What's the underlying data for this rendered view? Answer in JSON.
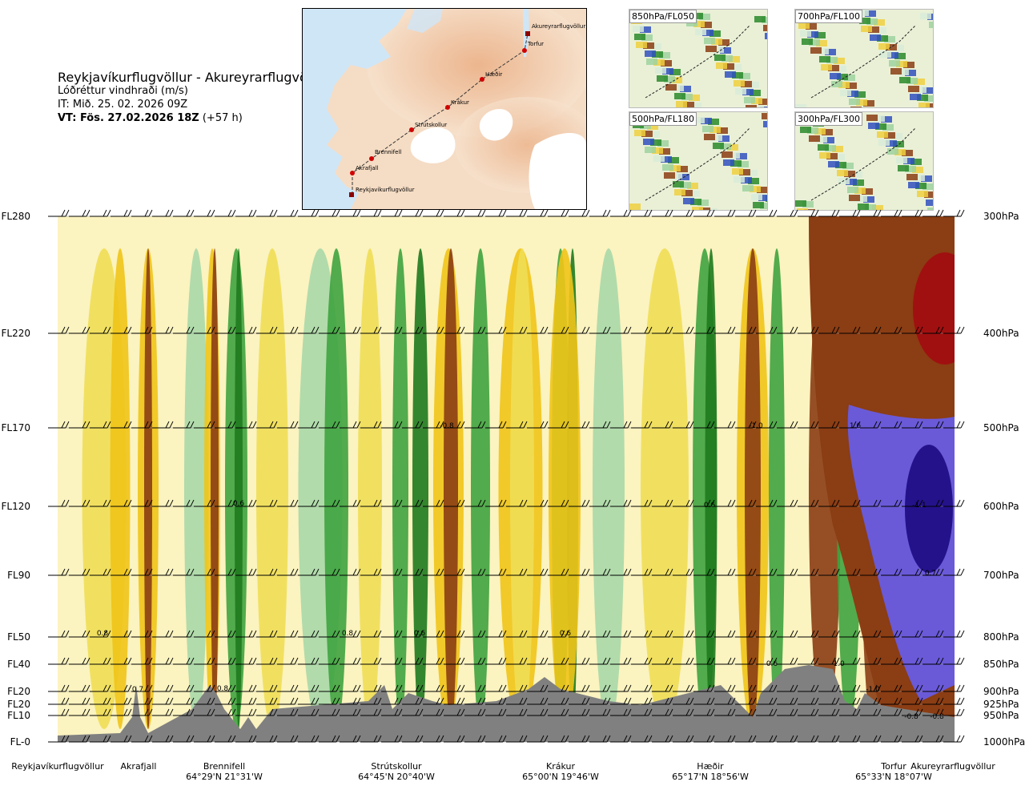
{
  "header": {
    "route_title": "Reykjavíkurflugvöllur - Akureyrarflugvöllur",
    "parameter": "Lóðréttur vindhraði (m/s)",
    "issue_time": "IT: Mið. 25. 02. 2026 09Z",
    "valid_prefix": "VT: Fös. 27.02.2026 18Z",
    "valid_lead": " (+57 h)"
  },
  "route_map": {
    "points": [
      "Reykjavíkurflugvöllur",
      "Akrafjall",
      "Brennifell",
      "Strútskollur",
      "Krákur",
      "Hæðir",
      "Torfur",
      "Akureyrarflugvöllur"
    ]
  },
  "level_maps": [
    {
      "label": "850hPa/FL050"
    },
    {
      "label": "700hPa/FL100"
    },
    {
      "label": "500hPa/FL180"
    },
    {
      "label": "300hPa/FL300"
    }
  ],
  "chart_data": {
    "type": "heatmap",
    "title": "Lóðréttur vindhraði (m/s)",
    "xlabel": "",
    "ylabel": "",
    "flight_levels": [
      "FL280",
      "FL220",
      "FL170",
      "FL120",
      "FL90",
      "FL50",
      "FL40",
      "FL20",
      "FL20",
      "FL10",
      "FL-0"
    ],
    "pressure_levels": [
      "300hPa",
      "400hPa",
      "500hPa",
      "600hPa",
      "700hPa",
      "800hPa",
      "850hPa",
      "900hPa",
      "925hPa",
      "950hPa",
      "1000hPa"
    ],
    "ylim_hpa": [
      1000,
      300
    ],
    "stations": [
      {
        "name": "Reykjavíkurflugvöllur",
        "coord": ""
      },
      {
        "name": "Akrafjall",
        "coord": ""
      },
      {
        "name": "Brennifell",
        "coord": "64°29'N 21°31'W"
      },
      {
        "name": "Strútskollur",
        "coord": "64°45'N 20°40'W"
      },
      {
        "name": "Krákur",
        "coord": "65°00'N 19°46'W"
      },
      {
        "name": "Hæðir",
        "coord": "65°17'N 18°56'W"
      },
      {
        "name": "Torfur",
        "coord": "65°33'N 18°07'W"
      },
      {
        "name": "Akureyrarflugvöllur",
        "coord": ""
      }
    ],
    "contour_labels": [
      "0.8",
      "0.7",
      "0.8",
      "0.6",
      "0.8",
      "0.6",
      "-0.8",
      "0.6",
      "0.6",
      "-1.0",
      "0.6",
      "-1.0",
      "1.6",
      "-1.0",
      "-1.1",
      "0.7",
      "-0.8",
      "-0.8"
    ],
    "terrain_color": "#808080",
    "colors": {
      "strong_up": "#1e7a1e",
      "mid_up": "#3fa33f",
      "weak_up": "#a8d8a8",
      "faint_up": "#d6efd6",
      "faint_down": "#fbf3c0",
      "weak_down": "#f0de55",
      "mid_down": "#f0c418",
      "strong_down": "#8b3d13",
      "very_strong_down": "#a01010",
      "extreme_up": "#6a5ad8"
    }
  }
}
